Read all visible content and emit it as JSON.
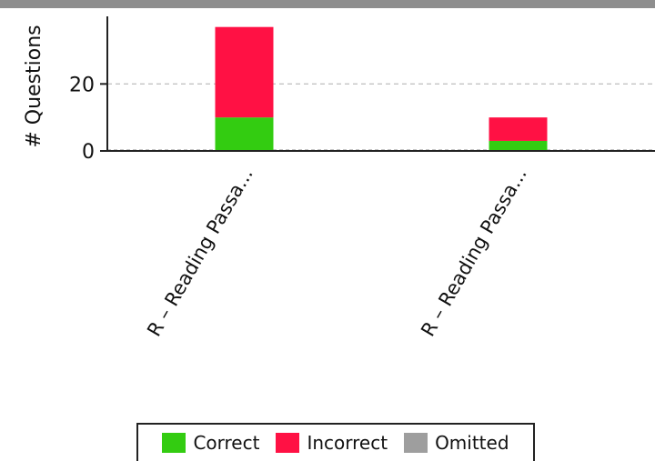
{
  "chart_data": {
    "type": "bar",
    "stacked": true,
    "ylabel": "# Questions",
    "ylim": [
      0,
      38
    ],
    "yticks": [
      0,
      20
    ],
    "grid": true,
    "categories": [
      "R – Reading Passa...",
      "R – Reading Passa..."
    ],
    "series": [
      {
        "name": "Correct",
        "color": "#33cc11",
        "values": [
          10,
          3
        ]
      },
      {
        "name": "Incorrect",
        "color": "#ff1144",
        "values": [
          27,
          7
        ]
      },
      {
        "name": "Omitted",
        "color": "#9e9e9e",
        "values": [
          0,
          0
        ]
      }
    ],
    "legend_position": "bottom"
  }
}
